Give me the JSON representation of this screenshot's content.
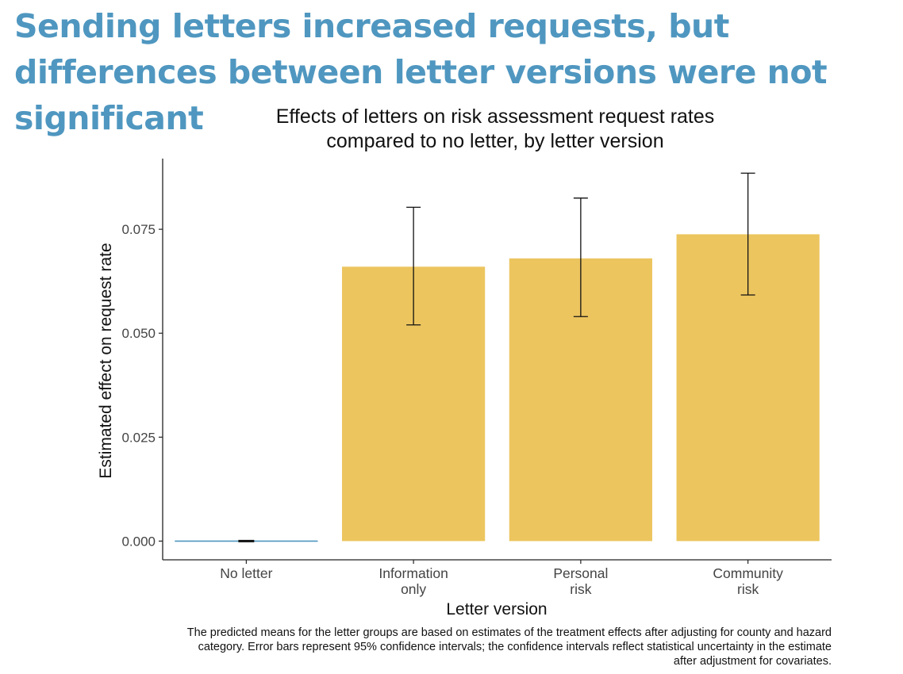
{
  "headline": "Sending letters increased requests, but differences between letter versions were not significant",
  "caption": "The predicted means for the letter groups are based on estimates of the treatment effects after adjusting for county and hazard category. Error bars represent 95% confidence intervals; the confidence intervals reflect statistical uncertainty in the estimate after adjustment for covariates.",
  "chart_data": {
    "type": "bar",
    "title": [
      "Effects of letters on risk assessment request rates",
      "compared to no letter, by letter version"
    ],
    "xlabel": "Letter version",
    "ylabel": "Estimated effect on request rate",
    "categories": [
      [
        "No letter"
      ],
      [
        "Information",
        "only"
      ],
      [
        "Personal",
        "risk"
      ],
      [
        "Community",
        "risk"
      ]
    ],
    "values": [
      0,
      0.066,
      0.068,
      0.0738
    ],
    "error_low": [
      0,
      0.052,
      0.054,
      0.0592
    ],
    "error_high": [
      0,
      0.0803,
      0.0825,
      0.0885
    ],
    "yticks": [
      0,
      0.025,
      0.05,
      0.075
    ],
    "ytick_labels": [
      "0.000",
      "0.025",
      "0.050",
      "0.075"
    ],
    "ylim": [
      -0.0045,
      0.092
    ],
    "bar_color": "#ecc55f",
    "baseline_color": "#4f97c0",
    "grid": false
  }
}
